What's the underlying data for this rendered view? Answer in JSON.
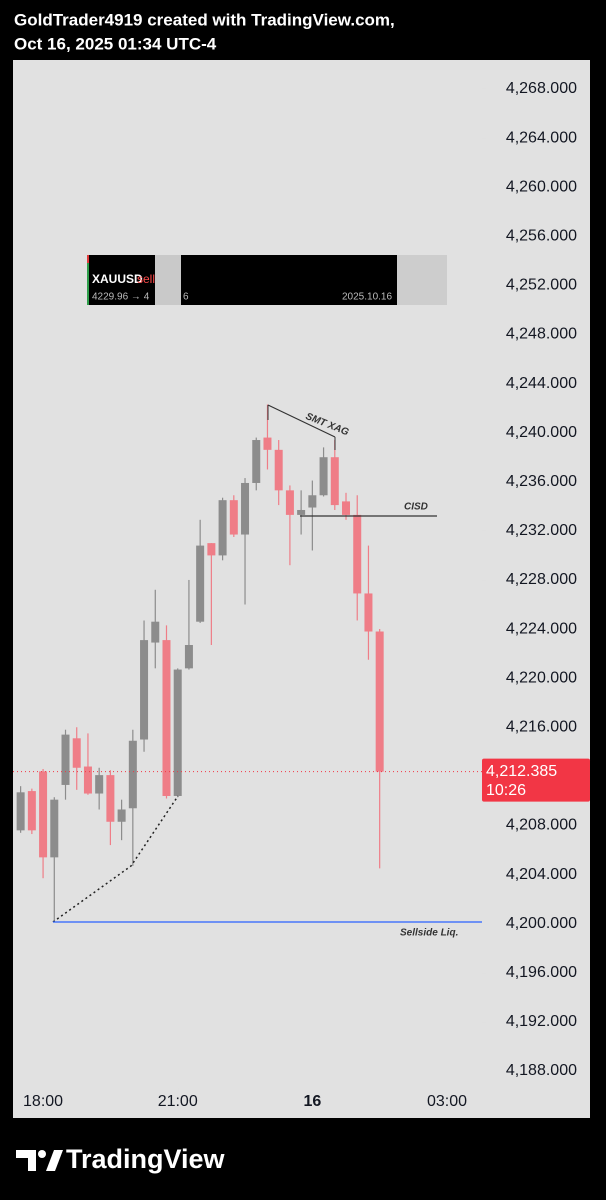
{
  "header": {
    "line1": "GoldTrader4919 created with TradingView.com,",
    "line2": "Oct 16, 2025 01:34 UTC-4"
  },
  "widget": {
    "symbol": "XAUUSD",
    "signal": "sell",
    "price_move": "4229.96 → 4",
    "fragment": "6",
    "date": "2025.10.16"
  },
  "chart_data": {
    "type": "candlestick",
    "x": [
      17.5,
      17.75,
      18,
      18.25,
      18.5,
      18.75,
      19,
      19.25,
      19.5,
      19.75,
      20,
      20.25,
      20.5,
      20.75,
      21,
      21.25,
      21.5,
      21.75,
      22,
      22.25,
      22.5,
      22.75,
      23,
      23.25,
      23.5,
      23.75,
      24,
      24.25,
      24.5,
      24.75,
      25,
      25.25,
      25.5
    ],
    "open": [
      4207.6,
      4210.8,
      4212.4,
      4205.4,
      4211.3,
      4215.1,
      4212.8,
      4210.6,
      4212.1,
      4208.3,
      4209.4,
      4215.0,
      4222.9,
      4223.1,
      4210.4,
      4220.8,
      4224.6,
      4231.0,
      4230.0,
      4234.5,
      4231.7,
      4235.9,
      4239.6,
      4238.6,
      4235.3,
      4233.3,
      4233.9,
      4234.9,
      4238.0,
      4234.4,
      4233.3,
      4226.9,
      4223.8
    ],
    "high": [
      4211.2,
      4211.0,
      4212.6,
      4210.3,
      4215.8,
      4216.0,
      4215.5,
      4212.7,
      4212.5,
      4210.1,
      4215.8,
      4224.7,
      4227.2,
      4224.3,
      4220.8,
      4228.0,
      4232.9,
      4231.0,
      4234.7,
      4234.9,
      4236.3,
      4239.6,
      4242.3,
      4239.4,
      4235.7,
      4235.3,
      4236.1,
      4238.8,
      4239.4,
      4235.1,
      4234.9,
      4230.8,
      4224.0
    ],
    "low": [
      4207.4,
      4207.3,
      4203.7,
      4200.1,
      4210.1,
      4210.9,
      4210.5,
      4209.3,
      4206.4,
      4206.8,
      4204.7,
      4214.0,
      4220.8,
      4210.2,
      4210.3,
      4220.7,
      4224.5,
      4222.7,
      4229.6,
      4231.5,
      4226.0,
      4235.3,
      4237.0,
      4234.1,
      4229.2,
      4231.7,
      4230.4,
      4234.8,
      4233.7,
      4232.9,
      4224.7,
      4221.5,
      4204.5
    ],
    "close": [
      4210.7,
      4207.6,
      4205.4,
      4210.1,
      4215.4,
      4212.7,
      4210.6,
      4212.1,
      4208.3,
      4209.3,
      4214.9,
      4223.1,
      4224.6,
      4210.4,
      4220.7,
      4222.7,
      4230.8,
      4230.0,
      4234.5,
      4231.7,
      4235.9,
      4239.4,
      4238.6,
      4235.3,
      4233.3,
      4233.7,
      4234.9,
      4238.0,
      4234.1,
      4233.3,
      4226.9,
      4223.8,
      4212.385
    ],
    "up_color": "#8c8c8c",
    "down_color": "#ef7d87",
    "xlim": [
      17.33,
      27.78
    ],
    "xticks": [
      {
        "value": 18,
        "label": "18:00"
      },
      {
        "value": 21,
        "label": "21:00"
      },
      {
        "value": 24,
        "label": "16"
      },
      {
        "value": 27,
        "label": "03:00"
      }
    ],
    "ylim": [
      4186.61,
      4270.36
    ],
    "yticks": [
      {
        "value": 4188,
        "label": "4,188.000"
      },
      {
        "value": 4192,
        "label": "4,192.000"
      },
      {
        "value": 4196,
        "label": "4,196.000"
      },
      {
        "value": 4200,
        "label": "4,200.000"
      },
      {
        "value": 4204,
        "label": "4,204.000"
      },
      {
        "value": 4208,
        "label": "4,208.000"
      },
      {
        "value": 4212,
        "label": "4,212.000"
      },
      {
        "value": 4216,
        "label": "4,216.000"
      },
      {
        "value": 4220,
        "label": "4,220.000"
      },
      {
        "value": 4224,
        "label": "4,224.000"
      },
      {
        "value": 4228,
        "label": "4,228.000"
      },
      {
        "value": 4232,
        "label": "4,232.000"
      },
      {
        "value": 4236,
        "label": "4,236.000"
      },
      {
        "value": 4240,
        "label": "4,240.000"
      },
      {
        "value": 4244,
        "label": "4,244.000"
      },
      {
        "value": 4248,
        "label": "4,248.000"
      },
      {
        "value": 4252,
        "label": "4,252.000"
      },
      {
        "value": 4256,
        "label": "4,256.000"
      },
      {
        "value": 4260,
        "label": "4,260.000"
      },
      {
        "value": 4264,
        "label": "4,264.000"
      },
      {
        "value": 4268,
        "label": "4,268.000"
      }
    ],
    "last_price": {
      "value": 4212.385,
      "label": "4,212.385"
    },
    "countdown": "10:26",
    "annotations": [
      "SMT XAG",
      "CISD",
      "Sellside Liq."
    ]
  },
  "footer": {
    "brand": "TradingView"
  }
}
